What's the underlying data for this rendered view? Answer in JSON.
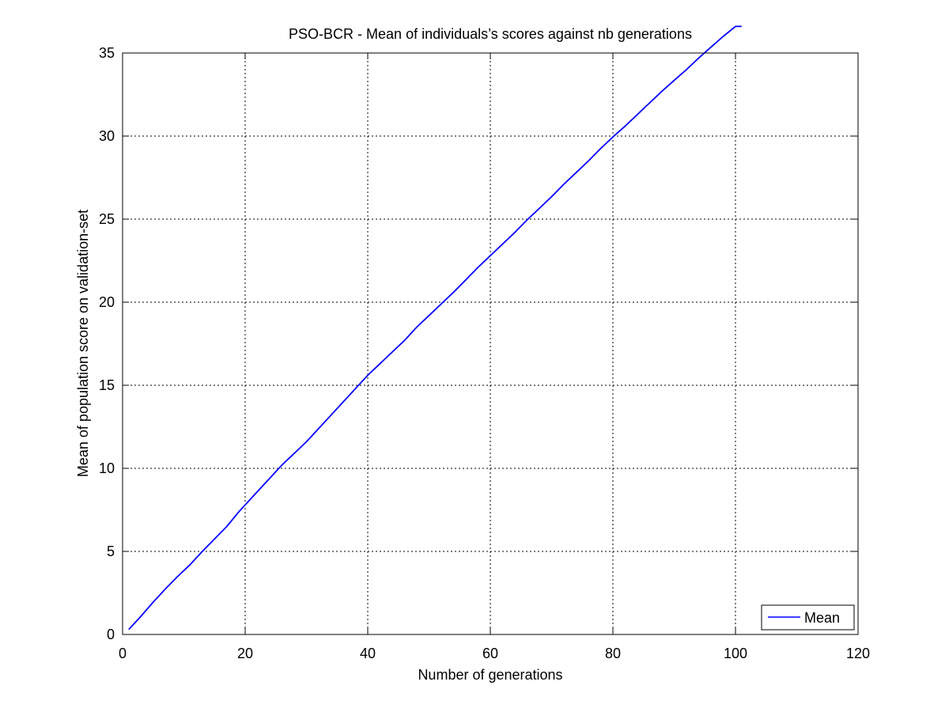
{
  "chart_data": {
    "type": "line",
    "title": "PSO-BCR - Mean of individuals’s scores against nb generations",
    "xlabel": "Number of generations",
    "ylabel": "Mean of population score on validation-set",
    "xlim": [
      0,
      120
    ],
    "ylim": [
      0,
      35
    ],
    "xticks": [
      0,
      20,
      40,
      60,
      80,
      100,
      120
    ],
    "yticks": [
      0,
      5,
      10,
      15,
      20,
      25,
      30,
      35
    ],
    "grid": true,
    "legend_position": "bottom-right",
    "series": [
      {
        "name": "Mean",
        "color": "#0000ff",
        "x": [
          1,
          3,
          5,
          7,
          9,
          11,
          13,
          15,
          17,
          19,
          20,
          22,
          24,
          26,
          28,
          30,
          32,
          34,
          36,
          38,
          40,
          42,
          44,
          46,
          48,
          50,
          52,
          54,
          56,
          58,
          60,
          62,
          64,
          66,
          68,
          70,
          72,
          74,
          76,
          78,
          80,
          82,
          84,
          86,
          88,
          90,
          92,
          94,
          96,
          98,
          100,
          101
        ],
        "y": [
          0.3,
          1.1,
          1.95,
          2.75,
          3.5,
          4.2,
          5.0,
          5.75,
          6.5,
          7.4,
          7.8,
          8.6,
          9.4,
          10.2,
          10.9,
          11.6,
          12.4,
          13.2,
          14.0,
          14.8,
          15.6,
          16.3,
          17.0,
          17.7,
          18.5,
          19.2,
          19.9,
          20.6,
          21.35,
          22.1,
          22.8,
          23.5,
          24.2,
          24.95,
          25.65,
          26.35,
          27.1,
          27.8,
          28.5,
          29.25,
          29.95,
          30.6,
          31.3,
          32.0,
          32.7,
          33.35,
          34.0,
          34.7,
          35.35,
          36.0,
          36.6,
          36.6
        ]
      }
    ]
  }
}
